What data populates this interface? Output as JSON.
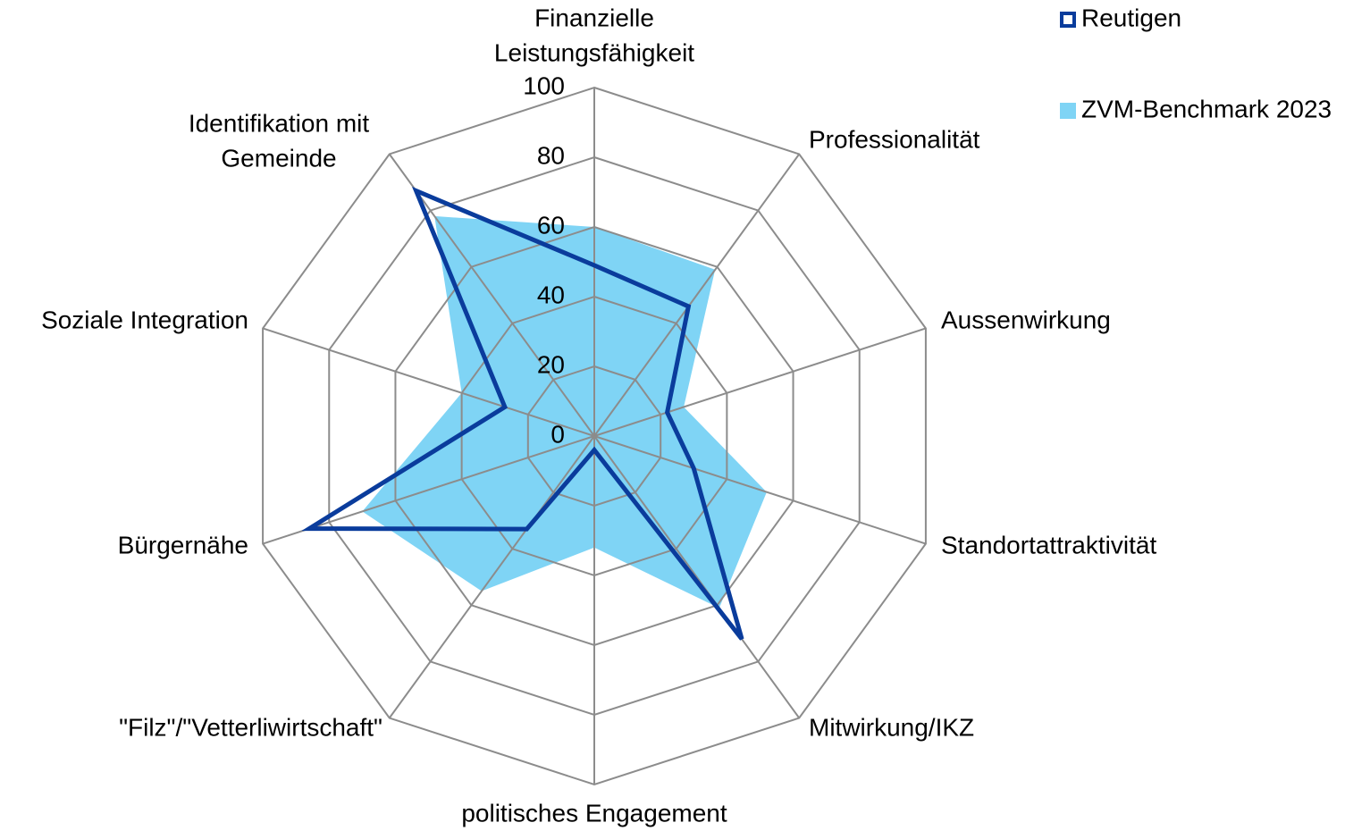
{
  "chart_data": {
    "type": "radar",
    "categories": [
      [
        "Finanzielle",
        "Leistungsfähigkeit"
      ],
      [
        "Professionalität"
      ],
      [
        "Aussenwirkung"
      ],
      [
        "Standortattraktivität"
      ],
      [
        "Mitwirkung/IKZ"
      ],
      [
        "politisches Engagement"
      ],
      [
        "\"Filz\"/\"Vetterliwirtschaft\""
      ],
      [
        "Bürgernähe"
      ],
      [
        "Soziale Integration"
      ],
      [
        "Identifikation mit",
        "Gemeinde"
      ]
    ],
    "series": [
      {
        "name": "Reutigen",
        "color": "#0a3c9c",
        "style": "line",
        "values": [
          49,
          46,
          22,
          30,
          72,
          4,
          33,
          86,
          27,
          87
        ]
      },
      {
        "name": "ZVM-Benchmark 2023",
        "color": "#7fd4f5",
        "style": "area",
        "values": [
          60,
          59,
          27,
          52,
          61,
          32,
          55,
          70,
          40,
          78
        ]
      }
    ],
    "ylim": [
      0,
      100
    ],
    "yticks": [
      0,
      20,
      40,
      60,
      80,
      100
    ],
    "grid": true,
    "legend": "top-right"
  }
}
